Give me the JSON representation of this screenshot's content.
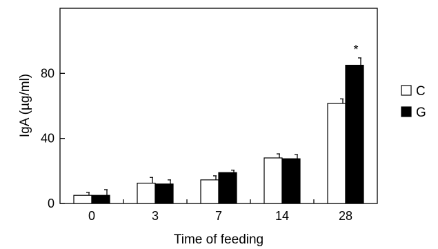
{
  "chart_data": {
    "type": "bar",
    "xlabel": "Time of feeding",
    "ylabel": "IgA (µg/ml)",
    "categories": [
      "0",
      "3",
      "7",
      "14",
      "28"
    ],
    "ylim": [
      0,
      120
    ],
    "yticks": [
      0,
      40,
      80
    ],
    "series": [
      {
        "name": "C",
        "fill": "#ffffff",
        "values": [
          5,
          12.5,
          14.5,
          28,
          61.5
        ],
        "errors": [
          1.8,
          3.5,
          2.5,
          2.5,
          2.8
        ]
      },
      {
        "name": "G",
        "fill": "#000000",
        "values": [
          5,
          12,
          19,
          27.5,
          85
        ],
        "errors": [
          3.5,
          2.5,
          1.5,
          2.5,
          4.5
        ]
      }
    ],
    "annotations": [
      {
        "category": "28",
        "series": "G",
        "text": "*"
      }
    ],
    "legend": "right",
    "grid": false
  }
}
